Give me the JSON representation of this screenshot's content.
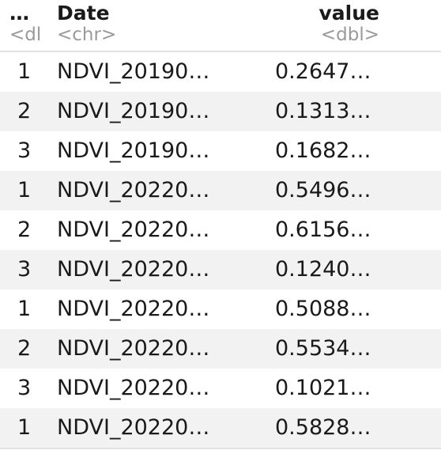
{
  "columns": [
    {
      "name": "…",
      "type": "<dl"
    },
    {
      "name": "Date",
      "type": "<chr>"
    },
    {
      "name": "value",
      "type": "<dbl>"
    }
  ],
  "rows": [
    {
      "idx": "1",
      "date": "NDVI_20190…",
      "value": "0.2647…"
    },
    {
      "idx": "2",
      "date": "NDVI_20190…",
      "value": "0.1313…"
    },
    {
      "idx": "3",
      "date": "NDVI_20190…",
      "value": "0.1682…"
    },
    {
      "idx": "1",
      "date": "NDVI_20220…",
      "value": "0.5496…"
    },
    {
      "idx": "2",
      "date": "NDVI_20220…",
      "value": "0.6156…"
    },
    {
      "idx": "3",
      "date": "NDVI_20220…",
      "value": "0.1240…"
    },
    {
      "idx": "1",
      "date": "NDVI_20220…",
      "value": "0.5088…"
    },
    {
      "idx": "2",
      "date": "NDVI_20220…",
      "value": "0.5534…"
    },
    {
      "idx": "3",
      "date": "NDVI_20220…",
      "value": "0.1021…"
    },
    {
      "idx": "1",
      "date": "NDVI_20220…",
      "value": "0.5828…"
    }
  ],
  "colors": {
    "stripe": "#f2f2f2",
    "type_label": "#9a9a9a",
    "rule": "#e3e3e3"
  }
}
